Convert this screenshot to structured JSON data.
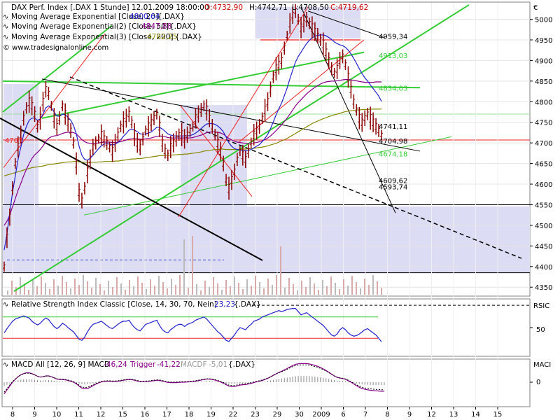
{
  "header": {
    "symbol_line": "DAX Perf. Index [.DAX  1 Stunde] 12.01.2009 18:00:00",
    "open": "O:4732,90",
    "high": "H:4742,71",
    "low": "L:4708,50",
    "close": "C:4719,62",
    "ema20_label": "Moving Average Exponential [Close, 20]",
    "ema20_value": "4800,64",
    "ema20_suffix": "{.DAX}",
    "ema50_label": "Moving Average Exponential(2) [Close, 50]",
    "ema50_value": "4847,88",
    "ema50_suffix": "{.DAX}",
    "ema200_label": "Moving Average Exponential(3) [Close, 200]",
    "ema200_value": "4782,25",
    "ema200_suffix": "{.DAX}",
    "copyright": "© www.tradesignalonline.com"
  },
  "rsi_panel": {
    "label": "Relative Strength Index Classic [Close, 14, 30, 70, Nein]",
    "value": "23,23",
    "suffix": "{.DAX}",
    "axis_title": "RSIC",
    "tick": "50"
  },
  "macd_panel": {
    "label_prefix": "MACD All [12, 26, 9] MACD",
    "macd_value": "-46,24",
    "trigger_label": "Trigger",
    "trigger_value": "-41,22",
    "macdf_label": "MACDF",
    "macdf_value": "-5,01",
    "suffix": "{.DAX}",
    "axis_title": "MACI",
    "tick": "0"
  },
  "colors": {
    "ema20": "#2222cc",
    "ema50": "#880088",
    "ema200": "#888800",
    "ohlc": "#8b0000",
    "up": "#22aa22",
    "down": "#cc2222",
    "green_line": "#33cc33",
    "red_line": "#ee2222",
    "band": "#dcdcf4",
    "rsi": "#2222cc",
    "macd": "#880088"
  },
  "chart_data": {
    "type": "line",
    "title": "DAX Perf. Index [.DAX  1 Stunde] 12.01.2009 18:00:00",
    "price_axis_unit": "€",
    "ylim": [
      4330,
      5040
    ],
    "y_ticks": [
      4350,
      4400,
      4450,
      4500,
      4550,
      4600,
      4650,
      4700,
      4750,
      4800,
      4850,
      4900,
      4950,
      5000
    ],
    "x_ticks": [
      "8",
      "9",
      "10",
      "11",
      "12",
      "15",
      "16",
      "17",
      "18",
      "19",
      "22",
      "23",
      "29",
      "30",
      "2009",
      "6",
      "7",
      "8",
      "9",
      "12",
      "13",
      "14",
      "15"
    ],
    "price_labels": [
      {
        "label": "4959,34",
        "value": 4959.34,
        "color": "#000000"
      },
      {
        "label": "4913,03",
        "value": 4913.03,
        "color": "#33cc33"
      },
      {
        "label": "4834,03",
        "value": 4834.03,
        "color": "#33cc33"
      },
      {
        "label": "4741,11",
        "value": 4741.11,
        "color": "#000000"
      },
      {
        "label": "4704,98",
        "value": 4704.98,
        "color": "#000000"
      },
      {
        "label": "4674,18",
        "value": 4674.18,
        "color": "#33cc33"
      },
      {
        "label": "4609,62",
        "value": 4609.62,
        "color": "#000000"
      },
      {
        "label": "4593,74",
        "value": 4593.74,
        "color": "#000000"
      },
      {
        "label": "4707",
        "value": 4707,
        "color": "#ee2222"
      }
    ],
    "series": [
      {
        "name": "DAX Perf. Index",
        "values": [
          4400,
          4470,
          4520,
          4590,
          4650,
          4690,
          4720,
          4760,
          4785,
          4800,
          4790,
          4770,
          4740,
          4760,
          4800,
          4830,
          4820,
          4790,
          4760,
          4740,
          4760,
          4790,
          4770,
          4750,
          4730,
          4700,
          4650,
          4580,
          4560,
          4590,
          4630,
          4660,
          4690,
          4700,
          4710,
          4720,
          4710,
          4700,
          4690,
          4680,
          4700,
          4720,
          4740,
          4750,
          4760,
          4770,
          4750,
          4720,
          4700,
          4690,
          4710,
          4730,
          4740,
          4750,
          4760,
          4770,
          4740,
          4700,
          4680,
          4670,
          4690,
          4700,
          4710,
          4720,
          4720,
          4710,
          4720,
          4730,
          4740,
          4760,
          4770,
          4780,
          4790,
          4780,
          4760,
          4740,
          4720,
          4700,
          4680,
          4650,
          4610,
          4590,
          4610,
          4630,
          4660,
          4680,
          4670,
          4660,
          4680,
          4700,
          4720,
          4730,
          4740,
          4760,
          4780,
          4800,
          4830,
          4860,
          4880,
          4890,
          4900,
          4930,
          4960,
          4990,
          5010,
          5020,
          5000,
          4980,
          4990,
          5000,
          4990,
          4980,
          4970,
          4960,
          4950,
          4940,
          4920,
          4900,
          4880,
          4870,
          4880,
          4900,
          4910,
          4890,
          4860,
          4830,
          4800,
          4780,
          4760,
          4750,
          4760,
          4770,
          4760,
          4750,
          4740,
          4730,
          4719.62
        ]
      },
      {
        "name": "Moving Average Exponential [Close, 20]",
        "values": [
          4440,
          4480,
          4530,
          4580,
          4620,
          4660,
          4690,
          4720,
          4740,
          4755,
          4760,
          4760,
          4755,
          4758,
          4770,
          4785,
          4790,
          4785,
          4775,
          4765,
          4765,
          4770,
          4768,
          4762,
          4755,
          4742,
          4722,
          4692,
          4670,
          4660,
          4658,
          4663,
          4670,
          4678,
          4686,
          4693,
          4697,
          4698,
          4697,
          4695,
          4697,
          4701,
          4708,
          4716,
          4723,
          4731,
          4733,
          4731,
          4727,
          4722,
          4721,
          4722,
          4724,
          4727,
          4732,
          4738,
          4738,
          4734,
          4728,
          4722,
          4719,
          4717,
          4717,
          4717,
          4717,
          4717,
          4717,
          4718,
          4720,
          4724,
          4729,
          4735,
          4741,
          4746,
          4747,
          4747,
          4745,
          4741,
          4735,
          4727,
          4714,
          4700,
          4692,
          4686,
          4684,
          4683,
          4682,
          4681,
          4682,
          4684,
          4688,
          4692,
          4696,
          4703,
          4711,
          4721,
          4735,
          4751,
          4768,
          4783,
          4797,
          4815,
          4834,
          4856,
          4877,
          4896,
          4910,
          4920,
          4931,
          4941,
          4949,
          4955,
          4959,
          4961,
          4962,
          4962,
          4960,
          4956,
          4951,
          4945,
          4941,
          4938,
          4936,
          4932,
          4925,
          4916,
          4905,
          4893,
          4880,
          4868,
          4858,
          4850,
          4841,
          4832,
          4823,
          4814,
          4800.64
        ]
      },
      {
        "name": "Moving Average Exponential(2) [Close, 50]",
        "values": [
          4500,
          4510,
          4525,
          4545,
          4565,
          4585,
          4602,
          4620,
          4636,
          4650,
          4662,
          4671,
          4677,
          4684,
          4693,
          4703,
          4711,
          4715,
          4717,
          4718,
          4720,
          4723,
          4725,
          4726,
          4726,
          4725,
          4722,
          4715,
          4708,
          4703,
          4700,
          4699,
          4699,
          4699,
          4700,
          4701,
          4702,
          4702,
          4702,
          4701,
          4701,
          4702,
          4703,
          4705,
          4707,
          4709,
          4710,
          4710,
          4710,
          4709,
          4709,
          4710,
          4711,
          4712,
          4714,
          4716,
          4717,
          4716,
          4715,
          4713,
          4712,
          4712,
          4712,
          4712,
          4712,
          4712,
          4712,
          4712,
          4713,
          4715,
          4717,
          4719,
          4722,
          4725,
          4726,
          4727,
          4727,
          4726,
          4724,
          4721,
          4716,
          4711,
          4707,
          4704,
          4702,
          4701,
          4700,
          4699,
          4699,
          4699,
          4700,
          4701,
          4703,
          4705,
          4708,
          4712,
          4717,
          4723,
          4730,
          4737,
          4744,
          4752,
          4761,
          4770,
          4780,
          4790,
          4798,
          4805,
          4812,
          4819,
          4825,
          4830,
          4835,
          4839,
          4843,
          4846,
          4848,
          4849,
          4850,
          4850,
          4851,
          4852,
          4853,
          4854,
          4854,
          4853,
          4852,
          4851,
          4849,
          4848,
          4847,
          4847,
          4847,
          4847,
          4848,
          4848,
          4847.88
        ]
      },
      {
        "name": "Moving Average Exponential(3) [Close, 200]",
        "values": [
          4620,
          4622,
          4624,
          4626,
          4628,
          4630,
          4632,
          4634,
          4636,
          4638,
          4640,
          4641,
          4642,
          4643,
          4644,
          4646,
          4647,
          4648,
          4649,
          4650,
          4651,
          4652,
          4653,
          4654,
          4654,
          4655,
          4655,
          4654,
          4653,
          4653,
          4653,
          4653,
          4653,
          4653,
          4654,
          4654,
          4655,
          4655,
          4655,
          4655,
          4656,
          4656,
          4657,
          4658,
          4659,
          4660,
          4661,
          4661,
          4662,
          4662,
          4663,
          4664,
          4665,
          4666,
          4667,
          4668,
          4669,
          4669,
          4670,
          4670,
          4670,
          4671,
          4671,
          4672,
          4672,
          4673,
          4673,
          4674,
          4675,
          4676,
          4677,
          4678,
          4680,
          4681,
          4682,
          4683,
          4684,
          4684,
          4685,
          4685,
          4684,
          4684,
          4684,
          4684,
          4684,
          4685,
          4685,
          4685,
          4686,
          4686,
          4687,
          4688,
          4689,
          4690,
          4691,
          4693,
          4695,
          4697,
          4699,
          4702,
          4705,
          4708,
          4711,
          4715,
          4719,
          4723,
          4727,
          4731,
          4735,
          4739,
          4743,
          4747,
          4750,
          4753,
          4756,
          4759,
          4761,
          4764,
          4766,
          4768,
          4770,
          4772,
          4774,
          4776,
          4777,
          4778,
          4779,
          4780,
          4780,
          4781,
          4781,
          4781,
          4782,
          4782,
          4782,
          4782,
          4782.25
        ]
      },
      {
        "name": "Relative Strength Index Classic [Close, 14, 30, 70, Nein]",
        "values": [
          40,
          48,
          55,
          62,
          66,
          68,
          70,
          72,
          70,
          68,
          62,
          58,
          55,
          58,
          64,
          68,
          65,
          58,
          52,
          48,
          52,
          58,
          55,
          50,
          46,
          42,
          35,
          28,
          26,
          32,
          42,
          50,
          56,
          58,
          60,
          62,
          58,
          54,
          50,
          48,
          52,
          56,
          60,
          62,
          62,
          64,
          56,
          50,
          46,
          44,
          50,
          56,
          58,
          60,
          62,
          64,
          54,
          46,
          42,
          40,
          46,
          50,
          54,
          56,
          56,
          52,
          56,
          58,
          60,
          64,
          66,
          68,
          70,
          66,
          60,
          54,
          48,
          42,
          38,
          32,
          26,
          24,
          30,
          36,
          44,
          50,
          48,
          46,
          52,
          56,
          62,
          64,
          66,
          70,
          72,
          74,
          76,
          78,
          80,
          82,
          80,
          82,
          84,
          85,
          86,
          86,
          80,
          74,
          76,
          78,
          74,
          70,
          66,
          62,
          58,
          54,
          48,
          42,
          36,
          34,
          38,
          46,
          50,
          46,
          40,
          36,
          34,
          35,
          38,
          42,
          46,
          48,
          44,
          40,
          36,
          30,
          23.23
        ]
      },
      {
        "name": "MACD",
        "values": [
          -60,
          -40,
          -20,
          0,
          15,
          28,
          38,
          44,
          48,
          48,
          44,
          38,
          30,
          26,
          28,
          32,
          32,
          28,
          22,
          16,
          14,
          14,
          12,
          9,
          5,
          0,
          -8,
          -20,
          -30,
          -34,
          -32,
          -26,
          -18,
          -10,
          -4,
          1,
          4,
          5,
          5,
          4,
          4,
          5,
          7,
          10,
          12,
          14,
          13,
          10,
          6,
          3,
          2,
          3,
          4,
          6,
          8,
          10,
          9,
          6,
          2,
          -1,
          -2,
          -2,
          -2,
          -1,
          0,
          0,
          1,
          2,
          3,
          5,
          8,
          11,
          14,
          16,
          16,
          14,
          11,
          6,
          1,
          -5,
          -13,
          -20,
          -22,
          -22,
          -19,
          -15,
          -13,
          -12,
          -9,
          -6,
          -2,
          2,
          5,
          9,
          14,
          20,
          27,
          35,
          43,
          50,
          56,
          63,
          70,
          78,
          85,
          91,
          94,
          95,
          95,
          95,
          93,
          90,
          86,
          81,
          75,
          68,
          60,
          51,
          41,
          32,
          25,
          21,
          19,
          15,
          8,
          0,
          -9,
          -18,
          -26,
          -32,
          -36,
          -39,
          -41,
          -43,
          -44,
          -45,
          -46,
          -46.24
        ]
      }
    ]
  }
}
